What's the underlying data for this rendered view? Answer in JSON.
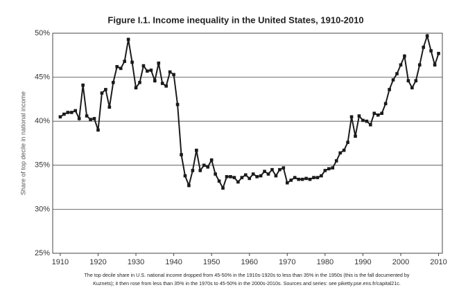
{
  "chart_data": {
    "type": "line",
    "title": "Figure I.1. Income inequality in the United States, 1910-2010",
    "y_label": "Share of top decile in national income",
    "caption": [
      "The top decile share in U.S. national income dropped from 45-50% in the 1910s-1920s to less than 35% in the 1950s (this is the fall documented by",
      "Kuznets); it then rose from less than 35% in the 1970s to 45-50% in the 2000s-2010s. Sources and series: see piketty.pse.ens.fr/capital21c."
    ],
    "x": [
      1910,
      1911,
      1912,
      1913,
      1914,
      1915,
      1916,
      1917,
      1918,
      1919,
      1920,
      1921,
      1922,
      1923,
      1924,
      1925,
      1926,
      1927,
      1928,
      1929,
      1930,
      1931,
      1932,
      1933,
      1934,
      1935,
      1936,
      1937,
      1938,
      1939,
      1940,
      1941,
      1942,
      1943,
      1944,
      1945,
      1946,
      1947,
      1948,
      1949,
      1950,
      1951,
      1952,
      1953,
      1954,
      1955,
      1956,
      1957,
      1958,
      1959,
      1960,
      1961,
      1962,
      1963,
      1964,
      1965,
      1966,
      1967,
      1968,
      1969,
      1970,
      1971,
      1972,
      1973,
      1974,
      1975,
      1976,
      1977,
      1978,
      1979,
      1980,
      1981,
      1982,
      1983,
      1984,
      1985,
      1986,
      1987,
      1988,
      1989,
      1990,
      1991,
      1992,
      1993,
      1994,
      1995,
      1996,
      1997,
      1998,
      1999,
      2000,
      2001,
      2002,
      2003,
      2004,
      2005,
      2006,
      2007,
      2008,
      2009,
      2010
    ],
    "series": [
      {
        "name": "Top decile share",
        "color": "#1a1a1a",
        "values": [
          40.5,
          40.8,
          41.0,
          41.0,
          41.2,
          40.3,
          44.1,
          40.6,
          40.2,
          40.3,
          39.0,
          43.2,
          43.6,
          41.6,
          44.4,
          46.2,
          46.0,
          46.8,
          49.3,
          46.7,
          43.8,
          44.4,
          46.3,
          45.7,
          45.8,
          44.6,
          46.6,
          44.3,
          44.0,
          45.6,
          45.3,
          41.9,
          36.2,
          33.8,
          32.7,
          34.4,
          36.7,
          34.4,
          35.0,
          34.8,
          35.6,
          34.0,
          33.2,
          32.4,
          33.7,
          33.7,
          33.6,
          33.1,
          33.6,
          33.9,
          33.5,
          34.0,
          33.7,
          33.8,
          34.3,
          34.0,
          34.5,
          33.8,
          34.5,
          34.7,
          33.0,
          33.3,
          33.6,
          33.4,
          33.4,
          33.5,
          33.4,
          33.6,
          33.6,
          33.8,
          34.4,
          34.6,
          34.7,
          35.5,
          36.4,
          36.7,
          37.6,
          40.5,
          38.3,
          40.6,
          40.1,
          40.0,
          39.6,
          40.9,
          40.7,
          40.9,
          42.0,
          43.6,
          44.7,
          45.4,
          46.4,
          47.4,
          44.6,
          43.8,
          44.6,
          46.4,
          48.4,
          49.7,
          48.0,
          46.4,
          47.7
        ]
      }
    ],
    "xlim": [
      1908,
      2011
    ],
    "ylim": [
      25,
      50
    ],
    "xticks": [
      1910,
      1920,
      1930,
      1940,
      1950,
      1960,
      1970,
      1980,
      1990,
      2000,
      2010
    ],
    "yticks": [
      {
        "value": 25,
        "label": "25%"
      },
      {
        "value": 30,
        "label": "30%"
      },
      {
        "value": 35,
        "label": "35%"
      },
      {
        "value": 40,
        "label": "40%"
      },
      {
        "value": 45,
        "label": "45%"
      },
      {
        "value": 50,
        "label": "50%"
      }
    ],
    "grid": true
  }
}
